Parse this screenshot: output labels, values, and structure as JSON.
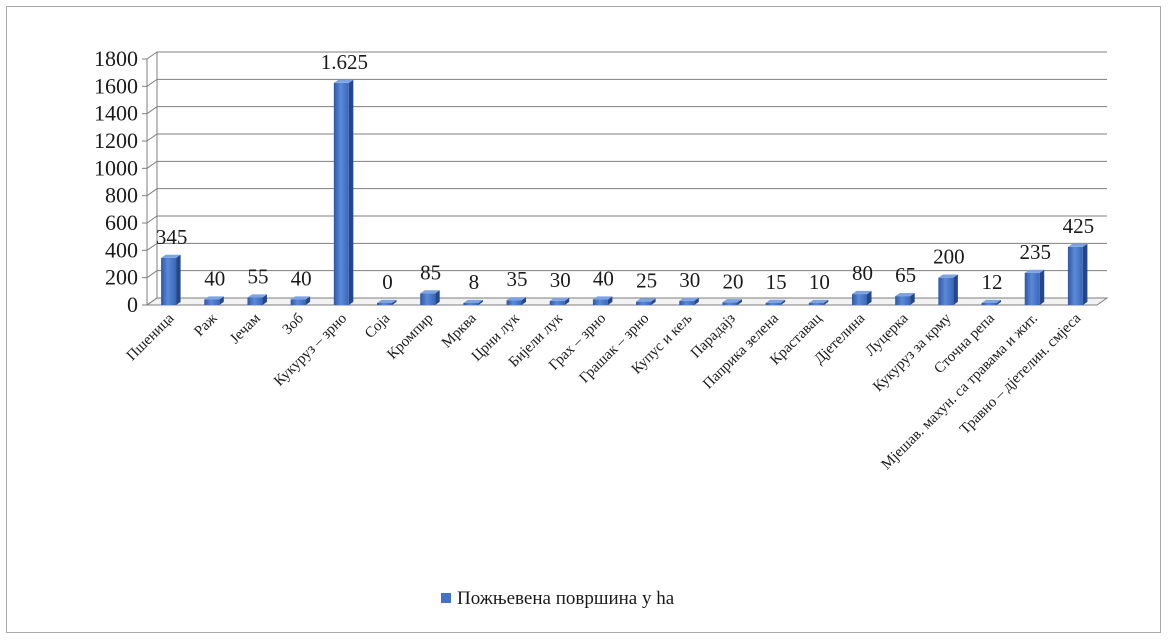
{
  "chart_data": {
    "type": "bar",
    "style": "3d-column",
    "categories": [
      "Пшеница",
      "Раж",
      "Јечам",
      "Зоб",
      "Кукуруз – зрно",
      "Соја",
      "Кромпир",
      "Мрква",
      "Црни лук",
      "Бијели лук",
      "Грах – зрно",
      "Грашак – зрно",
      "Купус и кељ",
      "Парадајз",
      "Паприка зелена",
      "Краставац",
      "Дјетелина",
      "Луцерка",
      "Кукуруз за крму",
      "Сточна репа",
      "Мјешав. махун. са травама и жит.",
      "Травно – дјетелин. смјеса"
    ],
    "series": [
      {
        "name": "Пожњевена површина у ha",
        "values": [
          345,
          40,
          55,
          40,
          1625,
          0,
          85,
          8,
          35,
          30,
          40,
          25,
          30,
          20,
          15,
          10,
          80,
          65,
          200,
          12,
          235,
          425
        ],
        "labels": [
          "345",
          "40",
          "55",
          "40",
          "1.625",
          "0",
          "85",
          "8",
          "35",
          "30",
          "40",
          "25",
          "30",
          "20",
          "15",
          "10",
          "80",
          "65",
          "200",
          "12",
          "235",
          "425"
        ],
        "color": "#4472c4"
      }
    ],
    "yticks": [
      "0",
      "200",
      "400",
      "600",
      "800",
      "1000",
      "1200",
      "1400",
      "1600",
      "1800"
    ],
    "ylim": [
      0,
      1800
    ],
    "grid": true,
    "legend": "bottom-center",
    "title": "",
    "xlabel": "",
    "ylabel": ""
  }
}
